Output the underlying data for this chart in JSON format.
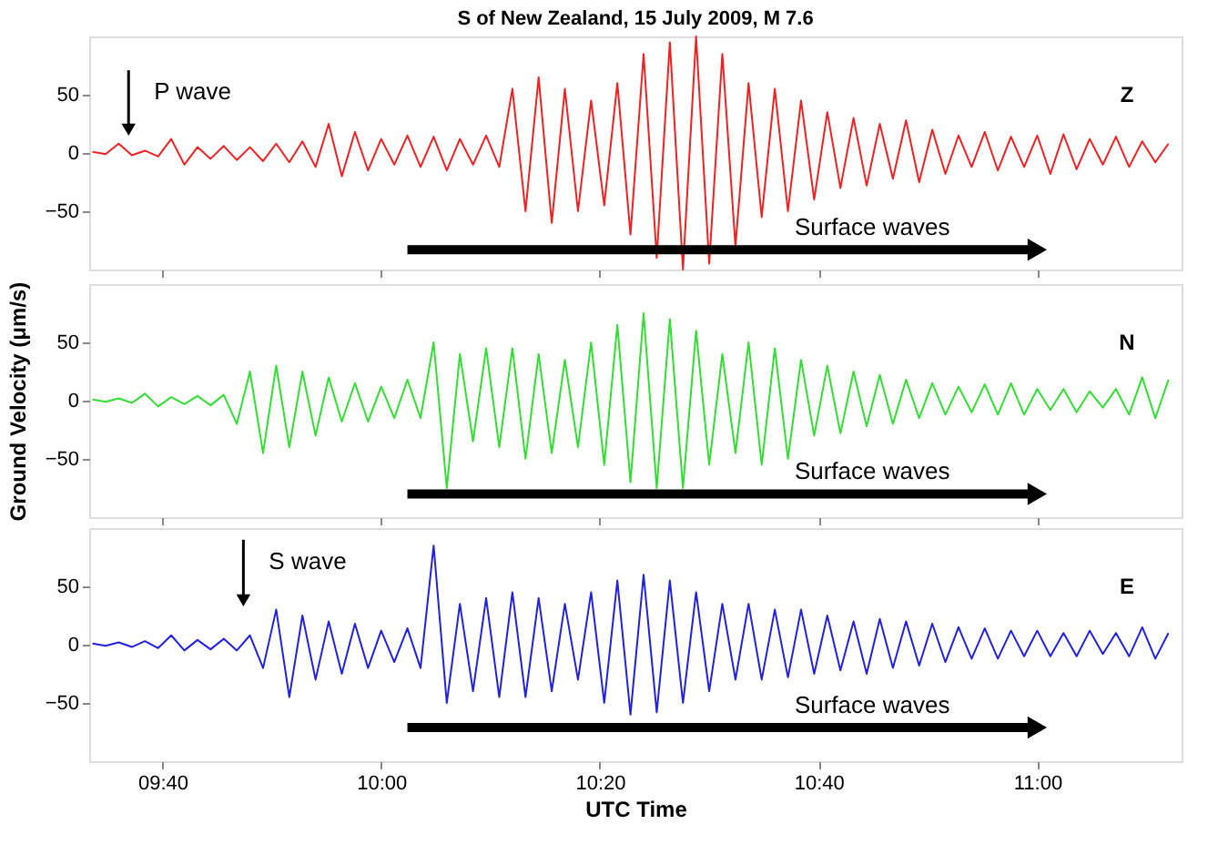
{
  "chart_data": [
    {
      "type": "line",
      "title": "S of New Zealand, 15 July 2009, M 7.6",
      "tick_labels": "y",
      "xlim": [
        9.555,
        11.22
      ],
      "xticks": [
        {
          "value": 9.6667,
          "label": null
        },
        {
          "value": 10,
          "label": null
        },
        {
          "value": 10.3333,
          "label": null
        },
        {
          "value": 10.6667,
          "label": null
        },
        {
          "value": 11,
          "label": null
        }
      ],
      "ylim": [
        -100,
        100
      ],
      "yticks": [
        -50,
        0,
        50
      ],
      "x": [
        9.56,
        9.58,
        9.6,
        9.62,
        9.64,
        9.66,
        9.68,
        9.7,
        9.72,
        9.74,
        9.76,
        9.78,
        9.8,
        9.82,
        9.84,
        9.86,
        9.88,
        9.9,
        9.92,
        9.94,
        9.96,
        9.98,
        10.0,
        10.02,
        10.04,
        10.06,
        10.08,
        10.1,
        10.12,
        10.14,
        10.16,
        10.18,
        10.2,
        10.22,
        10.24,
        10.26,
        10.28,
        10.3,
        10.32,
        10.34,
        10.36,
        10.38,
        10.4,
        10.42,
        10.44,
        10.46,
        10.48,
        10.5,
        10.52,
        10.54,
        10.56,
        10.58,
        10.6,
        10.62,
        10.64,
        10.66,
        10.68,
        10.7,
        10.72,
        10.74,
        10.76,
        10.78,
        10.8,
        10.82,
        10.84,
        10.86,
        10.88,
        10.9,
        10.92,
        10.94,
        10.96,
        10.98,
        11.0,
        11.02,
        11.04,
        11.06,
        11.08,
        11.1,
        11.12,
        11.14,
        11.16,
        11.18,
        11.2
      ],
      "series": [
        {
          "type": "line",
          "color": "#ee2222",
          "values": [
            1,
            -1,
            8,
            -2,
            2,
            -3,
            12,
            -10,
            5,
            -5,
            6,
            -6,
            5,
            -7,
            8,
            -8,
            10,
            -12,
            25,
            -20,
            18,
            -15,
            12,
            -10,
            15,
            -12,
            14,
            -15,
            12,
            -10,
            15,
            -12,
            55,
            -50,
            65,
            -60,
            55,
            -50,
            45,
            -45,
            60,
            -70,
            85,
            -90,
            95,
            -100,
            100,
            -95,
            85,
            -80,
            60,
            -55,
            55,
            -50,
            45,
            -40,
            35,
            -30,
            30,
            -28,
            25,
            -22,
            28,
            -25,
            20,
            -18,
            15,
            -12,
            18,
            -15,
            14,
            -12,
            15,
            -18,
            16,
            -14,
            12,
            -10,
            14,
            -12,
            10,
            -8,
            8
          ]
        },
        {
          "type": "line",
          "color": "#000000",
          "marker": "triangle",
          "x": [
            10.04,
            11.0
          ],
          "values": [
            -83,
            -83
          ]
        },
        {
          "type": "line",
          "color": "#000000",
          "marker": "triangle",
          "x": [
            9.615,
            9.615
          ],
          "values": [
            71,
            20
          ]
        }
      ],
      "annotations": [
        "Surface waves",
        "P wave",
        "Z"
      ]
    },
    {
      "type": "line",
      "ylabel": "Ground Velocity (μm/s)",
      "tick_labels": "y",
      "xlim": [
        9.555,
        11.22
      ],
      "xticks": [
        {
          "value": 9.6667,
          "label": null
        },
        {
          "value": 10,
          "label": null
        },
        {
          "value": 10.3333,
          "label": null
        },
        {
          "value": 10.6667,
          "label": null
        },
        {
          "value": 11,
          "label": null
        }
      ],
      "ylim": [
        -100,
        100
      ],
      "yticks": [
        -50,
        0,
        50
      ],
      "x": [
        9.56,
        9.58,
        9.6,
        9.62,
        9.64,
        9.66,
        9.68,
        9.7,
        9.72,
        9.74,
        9.76,
        9.78,
        9.8,
        9.82,
        9.84,
        9.86,
        9.88,
        9.9,
        9.92,
        9.94,
        9.96,
        9.98,
        10.0,
        10.02,
        10.04,
        10.06,
        10.08,
        10.1,
        10.12,
        10.14,
        10.16,
        10.18,
        10.2,
        10.22,
        10.24,
        10.26,
        10.28,
        10.3,
        10.32,
        10.34,
        10.36,
        10.38,
        10.4,
        10.42,
        10.44,
        10.46,
        10.48,
        10.5,
        10.52,
        10.54,
        10.56,
        10.58,
        10.6,
        10.62,
        10.64,
        10.66,
        10.68,
        10.7,
        10.72,
        10.74,
        10.76,
        10.78,
        10.8,
        10.82,
        10.84,
        10.86,
        10.88,
        10.9,
        10.92,
        10.94,
        10.96,
        10.98,
        11.0,
        11.02,
        11.04,
        11.06,
        11.08,
        11.1,
        11.12,
        11.14,
        11.16,
        11.18,
        11.2
      ],
      "series": [
        {
          "type": "line",
          "color": "#33dd33",
          "values": [
            1,
            -1,
            2,
            -2,
            6,
            -5,
            3,
            -3,
            4,
            -4,
            5,
            -20,
            25,
            -45,
            30,
            -40,
            25,
            -30,
            20,
            -18,
            15,
            -18,
            12,
            -15,
            18,
            -15,
            50,
            -75,
            40,
            -35,
            45,
            -40,
            45,
            -50,
            40,
            -45,
            35,
            -40,
            50,
            -55,
            65,
            -70,
            75,
            -75,
            70,
            -75,
            60,
            -55,
            40,
            -45,
            50,
            -55,
            45,
            -50,
            35,
            -30,
            30,
            -28,
            25,
            -22,
            22,
            -20,
            18,
            -15,
            15,
            -12,
            12,
            -10,
            14,
            -12,
            15,
            -12,
            10,
            -8,
            10,
            -10,
            8,
            -6,
            10,
            -12,
            20,
            -15,
            18
          ]
        },
        {
          "type": "line",
          "color": "#000000",
          "marker": "triangle",
          "x": [
            10.04,
            11.0
          ],
          "values": [
            -80,
            -80
          ]
        }
      ],
      "annotations": [
        "Surface waves",
        "N"
      ]
    },
    {
      "type": "line",
      "xlabel": "UTC Time",
      "xlim": [
        9.555,
        11.22
      ],
      "xticks": [
        {
          "value": 9.6667,
          "label": "09:40"
        },
        {
          "value": 10,
          "label": "10:00"
        },
        {
          "value": 10.3333,
          "label": "10:20"
        },
        {
          "value": 10.6667,
          "label": "10:40"
        },
        {
          "value": 11,
          "label": "11:00"
        }
      ],
      "ylim": [
        -100,
        100
      ],
      "yticks": [
        -50,
        0,
        50
      ],
      "x": [
        9.56,
        9.58,
        9.6,
        9.62,
        9.64,
        9.66,
        9.68,
        9.7,
        9.72,
        9.74,
        9.76,
        9.78,
        9.8,
        9.82,
        9.84,
        9.86,
        9.88,
        9.9,
        9.92,
        9.94,
        9.96,
        9.98,
        10.0,
        10.02,
        10.04,
        10.06,
        10.08,
        10.1,
        10.12,
        10.14,
        10.16,
        10.18,
        10.2,
        10.22,
        10.24,
        10.26,
        10.28,
        10.3,
        10.32,
        10.34,
        10.36,
        10.38,
        10.4,
        10.42,
        10.44,
        10.46,
        10.48,
        10.5,
        10.52,
        10.54,
        10.56,
        10.58,
        10.6,
        10.62,
        10.64,
        10.66,
        10.68,
        10.7,
        10.72,
        10.74,
        10.76,
        10.78,
        10.8,
        10.82,
        10.84,
        10.86,
        10.88,
        10.9,
        10.92,
        10.94,
        10.96,
        10.98,
        11.0,
        11.02,
        11.04,
        11.06,
        11.08,
        11.1,
        11.12,
        11.14,
        11.16,
        11.18,
        11.2
      ],
      "series": [
        {
          "type": "line",
          "color": "#2222dd",
          "values": [
            1,
            -1,
            2,
            -2,
            3,
            -3,
            8,
            -5,
            4,
            -4,
            5,
            -5,
            8,
            -20,
            30,
            -45,
            25,
            -30,
            20,
            -25,
            18,
            -20,
            12,
            -15,
            14,
            -20,
            85,
            -50,
            35,
            -40,
            40,
            -45,
            45,
            -45,
            40,
            -40,
            35,
            -30,
            45,
            -50,
            55,
            -60,
            60,
            -58,
            55,
            -50,
            45,
            -40,
            35,
            -30,
            35,
            -30,
            30,
            -28,
            30,
            -25,
            25,
            -22,
            20,
            -25,
            22,
            -20,
            20,
            -18,
            18,
            -15,
            15,
            -12,
            14,
            -12,
            12,
            -10,
            12,
            -10,
            10,
            -10,
            12,
            -8,
            10,
            -10,
            15,
            -12,
            10
          ]
        },
        {
          "type": "line",
          "color": "#000000",
          "marker": "triangle",
          "x": [
            10.04,
            11.0
          ],
          "values": [
            -71,
            -71
          ]
        },
        {
          "type": "line",
          "color": "#000000",
          "marker": "triangle",
          "x": [
            9.79,
            9.79
          ],
          "values": [
            90,
            38
          ]
        }
      ],
      "annotations": [
        "Surface waves",
        "S wave",
        "E"
      ]
    }
  ]
}
